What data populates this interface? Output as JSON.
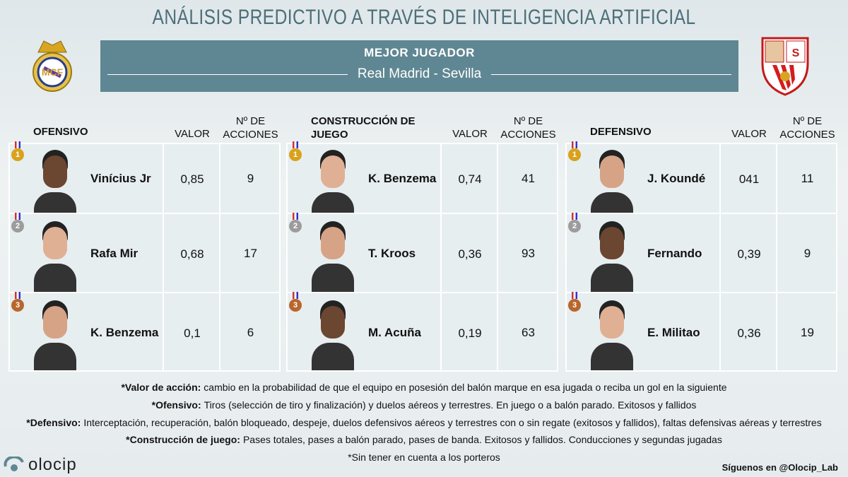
{
  "header": {
    "title": "ANÁLISIS PREDICTIVO A TRAVÉS DE INTELIGENCIA ARTIFICIAL",
    "subtitle": "MEJOR JUGADOR",
    "match": "Real Madrid - Sevilla"
  },
  "tables": [
    {
      "title": "OFENSIVO",
      "columns": [
        "VALOR",
        "Nº DE ACCIONES"
      ],
      "rows": [
        {
          "rank": 1,
          "player": "Vinícius Jr",
          "valor": "0,85",
          "acciones": 9
        },
        {
          "rank": 2,
          "player": "Rafa Mir",
          "valor": "0,68",
          "acciones": 17
        },
        {
          "rank": 3,
          "player": "K. Benzema",
          "valor": "0,1",
          "acciones": 6
        }
      ]
    },
    {
      "title": "CONSTRUCCIÓN DE JUEGO",
      "columns": [
        "VALOR",
        "Nº DE ACCIONES"
      ],
      "rows": [
        {
          "rank": 1,
          "player": "K. Benzema",
          "valor": "0,74",
          "acciones": 41
        },
        {
          "rank": 2,
          "player": "T. Kroos",
          "valor": "0,36",
          "acciones": 93
        },
        {
          "rank": 3,
          "player": "M. Acuña",
          "valor": "0,19",
          "acciones": 63
        }
      ]
    },
    {
      "title": "DEFENSIVO",
      "columns": [
        "VALOR",
        "Nº DE ACCIONES"
      ],
      "rows": [
        {
          "rank": 1,
          "player": "J. Koundé",
          "valor": "041",
          "acciones": 11
        },
        {
          "rank": 2,
          "player": "Fernando",
          "valor": "0,39",
          "acciones": 9
        },
        {
          "rank": 3,
          "player": "E. Militao",
          "valor": "0,36",
          "acciones": 19
        }
      ]
    }
  ],
  "notes": [
    {
      "label": "*Valor de acción:",
      "text": "cambio en la probabilidad de que el equipo en posesión del balón marque en esa jugada o reciba un gol en la siguiente"
    },
    {
      "label": "*Ofensivo:",
      "text": "Tiros (selección de tiro y finalización) y duelos aéreos y terrestres. En juego o a balón parado. Exitosos y fallidos"
    },
    {
      "label": "*Defensivo:",
      "text": "Interceptación, recuperación, balón bloqueado, despeje, duelos defensivos aéreos y terrestres con o sin regate (exitosos y fallidos), faltas defensivas aéreas y terrestres"
    },
    {
      "label": "*Construcción de juego:",
      "text": "Pases totales, pases a balón parado, pases de banda. Exitosos y fallidos. Conducciones y segundas jugadas"
    },
    {
      "text": "*Sin tener en cuenta a los porteros"
    }
  ],
  "footer": {
    "brand": "olocip",
    "follow": "Síguenos en @Olocip_Lab"
  }
}
